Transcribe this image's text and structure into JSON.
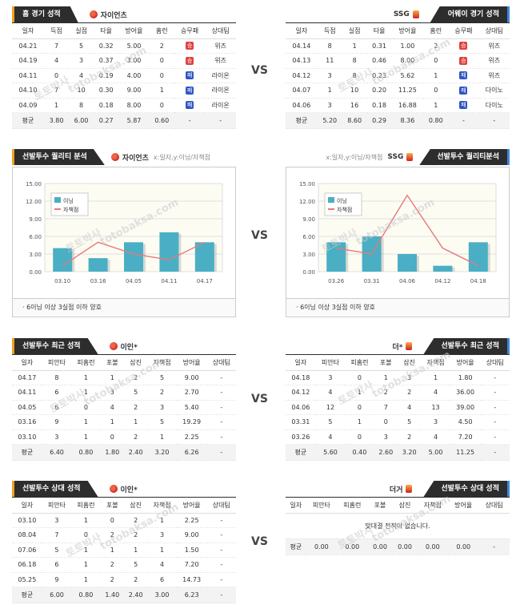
{
  "vs_label": "VS",
  "section1": {
    "left": {
      "title": "홈 경기 성적",
      "team": "자이언츠",
      "headers": [
        "일자",
        "득점",
        "실점",
        "타율",
        "방어율",
        "홈런",
        "승무패",
        "상대팀"
      ],
      "rows": [
        [
          "04.21",
          "7",
          "5",
          "0.32",
          "5.00",
          "2",
          "lose",
          "위즈"
        ],
        [
          "04.19",
          "4",
          "3",
          "0.37",
          "3.00",
          "0",
          "lose",
          "위즈"
        ],
        [
          "04.11",
          "0",
          "4",
          "0.19",
          "4.00",
          "0",
          "win",
          "라이온"
        ],
        [
          "04.10",
          "7",
          "10",
          "0.30",
          "9.00",
          "1",
          "win",
          "라이온"
        ],
        [
          "04.09",
          "1",
          "8",
          "0.18",
          "8.00",
          "0",
          "win",
          "라이온"
        ]
      ],
      "avg": [
        "평균",
        "3.80",
        "6.00",
        "0.27",
        "5.87",
        "0.60",
        "-",
        "-"
      ]
    },
    "right": {
      "title": "어웨이 경기 성적",
      "team": "SSG",
      "headers": [
        "일자",
        "득점",
        "실점",
        "타율",
        "방어율",
        "홈런",
        "승무패",
        "상대팀"
      ],
      "rows": [
        [
          "04.14",
          "8",
          "1",
          "0.31",
          "1.00",
          "2",
          "lose",
          "위즈"
        ],
        [
          "04.13",
          "11",
          "8",
          "0.46",
          "8.00",
          "0",
          "lose",
          "위즈"
        ],
        [
          "04.12",
          "3",
          "8",
          "0.23",
          "5.62",
          "1",
          "win",
          "위즈"
        ],
        [
          "04.07",
          "1",
          "10",
          "0.20",
          "11.25",
          "0",
          "win",
          "다이노"
        ],
        [
          "04.06",
          "3",
          "16",
          "0.18",
          "16.88",
          "1",
          "win",
          "다이노"
        ]
      ],
      "avg": [
        "평균",
        "5.20",
        "8.60",
        "0.29",
        "8.36",
        "0.80",
        "-",
        "-"
      ]
    },
    "wl_labels": {
      "lose": "승",
      "win": "패"
    }
  },
  "section2": {
    "left": {
      "title": "선발투수 퀄리티 분석",
      "team": "자이언츠",
      "axis_note": "x:일자,y:이닝/자책점",
      "note": "6이닝 이상 3실점 이하 양호"
    },
    "right": {
      "title": "선발투수 퀄리티분석",
      "team": "SSG",
      "axis_note": "x:일자,y:이닝/자책점",
      "note": "6이닝 이상 3실점 이하 양호"
    }
  },
  "chart_data": [
    {
      "type": "bar",
      "categories": [
        "03.10",
        "03.16",
        "04.05",
        "04.11",
        "04.17"
      ],
      "series": [
        {
          "name": "이닝",
          "kind": "bar",
          "color": "#4aafc4",
          "values": [
            4.0,
            2.3,
            5.0,
            6.7,
            5.0
          ]
        },
        {
          "name": "자책점",
          "kind": "line",
          "color": "#e87878",
          "values": [
            1,
            5,
            3,
            2,
            5
          ]
        }
      ],
      "yticks": [
        "0.00",
        "3.00",
        "6.00",
        "9.00",
        "12.00",
        "15.00"
      ],
      "ylim": [
        0,
        15
      ]
    },
    {
      "type": "bar",
      "categories": [
        "03.26",
        "03.31",
        "04.06",
        "04.12",
        "04.18"
      ],
      "series": [
        {
          "name": "이닝",
          "kind": "bar",
          "color": "#4aafc4",
          "values": [
            5.0,
            6.0,
            3.0,
            1.0,
            5.0
          ]
        },
        {
          "name": "자책점",
          "kind": "line",
          "color": "#e87878",
          "values": [
            4,
            3,
            13,
            4,
            1
          ]
        }
      ],
      "yticks": [
        "0.00",
        "3.00",
        "6.00",
        "9.00",
        "12.00",
        "15.00"
      ],
      "ylim": [
        0,
        15
      ]
    }
  ],
  "section3": {
    "left": {
      "title": "선발투수 최근 성적",
      "team": "이인*",
      "headers": [
        "일자",
        "피안타",
        "피홈런",
        "포볼",
        "삼진",
        "자책점",
        "방어율",
        "상대팀"
      ],
      "rows": [
        [
          "04.17",
          "8",
          "1",
          "1",
          "2",
          "5",
          "9.00",
          "-"
        ],
        [
          "04.11",
          "6",
          "1",
          "3",
          "5",
          "2",
          "2.70",
          "-"
        ],
        [
          "04.05",
          "6",
          "0",
          "4",
          "2",
          "3",
          "5.40",
          "-"
        ],
        [
          "03.16",
          "9",
          "1",
          "1",
          "1",
          "5",
          "19.29",
          "-"
        ],
        [
          "03.10",
          "3",
          "1",
          "0",
          "2",
          "1",
          "2.25",
          "-"
        ]
      ],
      "avg": [
        "평균",
        "6.40",
        "0.80",
        "1.80",
        "2.40",
        "3.20",
        "6.26",
        "-"
      ]
    },
    "right": {
      "title": "선발투수 최근 성적",
      "team": "더*",
      "headers": [
        "일자",
        "피안타",
        "피홈런",
        "포볼",
        "삼진",
        "자책점",
        "방어율",
        "상대팀"
      ],
      "rows": [
        [
          "04.18",
          "3",
          "0",
          "1",
          "3",
          "1",
          "1.80",
          "-"
        ],
        [
          "04.12",
          "4",
          "1",
          "2",
          "2",
          "4",
          "36.00",
          "-"
        ],
        [
          "04.06",
          "12",
          "0",
          "7",
          "4",
          "13",
          "39.00",
          "-"
        ],
        [
          "03.31",
          "5",
          "1",
          "0",
          "5",
          "3",
          "4.50",
          "-"
        ],
        [
          "03.26",
          "4",
          "0",
          "3",
          "2",
          "4",
          "7.20",
          "-"
        ]
      ],
      "avg": [
        "평균",
        "5.60",
        "0.40",
        "2.60",
        "3.20",
        "5.00",
        "11.25",
        "-"
      ]
    }
  },
  "section4": {
    "left": {
      "title": "선발투수 상대 성적",
      "team": "이인*",
      "headers": [
        "일자",
        "피안타",
        "피홈런",
        "포볼",
        "삼진",
        "자책점",
        "방어율",
        "상대팀"
      ],
      "rows": [
        [
          "03.10",
          "3",
          "1",
          "0",
          "2",
          "1",
          "2.25",
          "-"
        ],
        [
          "08.04",
          "7",
          "0",
          "2",
          "2",
          "3",
          "9.00",
          "-"
        ],
        [
          "07.06",
          "5",
          "1",
          "1",
          "1",
          "1",
          "1.50",
          "-"
        ],
        [
          "06.18",
          "6",
          "1",
          "2",
          "5",
          "4",
          "7.20",
          "-"
        ],
        [
          "05.25",
          "9",
          "1",
          "2",
          "2",
          "6",
          "14.73",
          "-"
        ]
      ],
      "avg": [
        "평균",
        "6.00",
        "0.80",
        "1.40",
        "2.40",
        "3.00",
        "6.23",
        "-"
      ]
    },
    "right": {
      "title": "선발투수 상대 성적",
      "team": "더거",
      "headers": [
        "일자",
        "피안타",
        "피홈런",
        "포볼",
        "삼진",
        "자책점",
        "방어율",
        "상대팀"
      ],
      "empty_message": "맞대결 전적이 없습니다.",
      "avg": [
        "평균",
        "0.00",
        "0.00",
        "0.00",
        "0.00",
        "0.00",
        "0.00",
        "-"
      ]
    }
  },
  "watermark": [
    "토토박사",
    "totobaksa.com"
  ]
}
